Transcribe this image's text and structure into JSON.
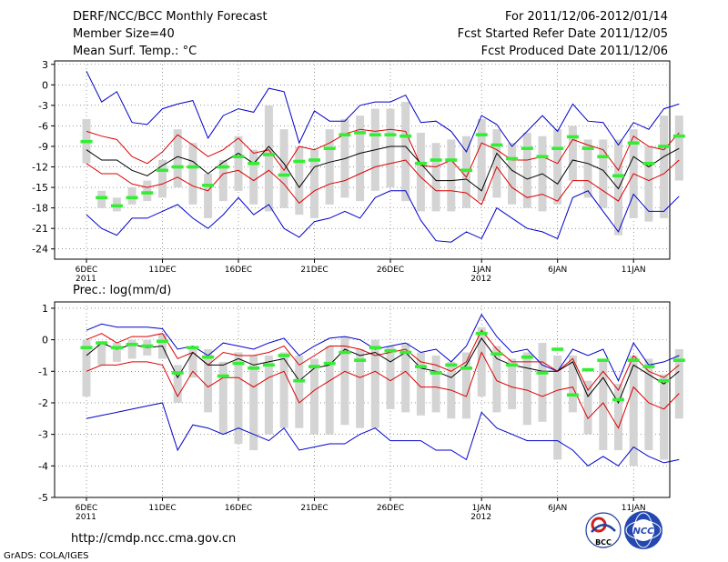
{
  "header": {
    "title": "DERF/NCC/BCC Monthly Forecast",
    "member_size": "Member Size=40",
    "top_variable": "Mean Surf. Temp.: °C",
    "forecast_period": "For 2011/12/06-2012/01/14",
    "started_refer_date": "Fcst Started Refer Date 2011/12/05",
    "produced_date": "Fcst Produced Date 2011/12/06"
  },
  "footer": {
    "url": "http://cmdp.ncc.cma.gov.cn",
    "grads_credit": "GrADS: COLA/IGES",
    "logo_left_text": "BCC",
    "logo_right_text": "NCC"
  },
  "colors": {
    "ensemble_mean": "#000000",
    "spread_band": "#dd0000",
    "envelope": "#0000cc",
    "member_box": "#d4d4d4",
    "median_marker": "#33ee33"
  },
  "chart_data": [
    {
      "type": "line",
      "title": "Mean Surf. Temp.: °C",
      "xlabel": "",
      "ylabel": "°C",
      "ylim": [
        -25.5,
        3.5
      ],
      "yticks": [
        3,
        0,
        -3,
        -6,
        -9,
        -12,
        -15,
        -18,
        -21,
        -24
      ],
      "grid": true,
      "x_tick_labels": [
        {
          "day": 1,
          "label": "6DEC",
          "sub": "2011"
        },
        {
          "day": 6,
          "label": "11DEC",
          "sub": ""
        },
        {
          "day": 11,
          "label": "16DEC",
          "sub": ""
        },
        {
          "day": 16,
          "label": "21DEC",
          "sub": ""
        },
        {
          "day": 21,
          "label": "26DEC",
          "sub": ""
        },
        {
          "day": 27,
          "label": "1JAN",
          "sub": "2012"
        },
        {
          "day": 32,
          "label": "6JAN",
          "sub": ""
        },
        {
          "day": 37,
          "label": "11JAN",
          "sub": ""
        }
      ],
      "days": [
        1,
        2,
        3,
        4,
        5,
        6,
        7,
        8,
        9,
        10,
        11,
        12,
        13,
        14,
        15,
        16,
        17,
        18,
        19,
        20,
        21,
        22,
        23,
        24,
        25,
        26,
        27,
        28,
        29,
        30,
        31,
        32,
        33,
        34,
        35,
        36,
        37,
        38,
        39,
        40
      ],
      "series": [
        {
          "name": "max",
          "role": "envelope-upper",
          "values": [
            2.0,
            -2.5,
            -1.0,
            -5.5,
            -5.8,
            -3.5,
            -2.8,
            -2.3,
            -7.8,
            -4.5,
            -3.5,
            -4.0,
            -0.5,
            -1.0,
            -8.5,
            -3.8,
            -5.3,
            -5.3,
            -3.0,
            -2.5,
            -2.5,
            -1.5,
            -5.5,
            -5.3,
            -6.8,
            -9.8,
            -4.5,
            -5.8,
            -9.0,
            -6.8,
            -4.5,
            -6.8,
            -2.8,
            -5.3,
            -5.5,
            -8.8,
            -5.5,
            -6.5,
            -3.5,
            -2.8
          ]
        },
        {
          "name": "upper",
          "role": "spread-upper",
          "values": [
            -6.8,
            -7.5,
            -8.0,
            -10.5,
            -11.5,
            -9.8,
            -7.3,
            -8.8,
            -10.5,
            -9.5,
            -7.8,
            -10.0,
            -9.5,
            -12.5,
            -9.0,
            -9.5,
            -8.5,
            -7.2,
            -6.5,
            -6.8,
            -6.5,
            -6.8,
            -11.8,
            -12.0,
            -11.0,
            -13.5,
            -8.5,
            -9.5,
            -11.0,
            -11.0,
            -10.5,
            -11.5,
            -8.0,
            -8.8,
            -9.5,
            -12.5,
            -7.5,
            -9.0,
            -9.5,
            -7.0
          ]
        },
        {
          "name": "ensemble-mean",
          "role": "mean",
          "values": [
            -9.5,
            -11.0,
            -11.0,
            -12.5,
            -13.3,
            -11.8,
            -10.5,
            -11.2,
            -13.0,
            -11.3,
            -10.0,
            -11.5,
            -9.0,
            -11.5,
            -15.0,
            -12.0,
            -11.3,
            -10.8,
            -10.0,
            -9.5,
            -9.0,
            -9.0,
            -11.5,
            -14.0,
            -14.0,
            -13.8,
            -15.5,
            -10.0,
            -12.5,
            -13.8,
            -13.0,
            -14.5,
            -11.0,
            -11.5,
            -12.5,
            -15.2,
            -10.5,
            -12.0,
            -10.5,
            -9.3
          ]
        },
        {
          "name": "lower",
          "role": "spread-lower",
          "values": [
            -11.5,
            -13.0,
            -13.0,
            -14.5,
            -15.0,
            -14.5,
            -13.5,
            -14.8,
            -15.5,
            -13.0,
            -12.5,
            -14.0,
            -12.5,
            -14.5,
            -17.3,
            -15.5,
            -14.5,
            -14.0,
            -13.0,
            -12.0,
            -11.5,
            -11.0,
            -13.5,
            -15.5,
            -15.5,
            -15.8,
            -17.5,
            -12.0,
            -15.0,
            -16.5,
            -16.0,
            -17.0,
            -14.0,
            -14.0,
            -15.5,
            -17.0,
            -13.0,
            -14.0,
            -13.0,
            -11.0
          ]
        },
        {
          "name": "min",
          "role": "envelope-lower",
          "values": [
            -19.0,
            -21.0,
            -22.0,
            -19.5,
            -19.5,
            -18.5,
            -17.5,
            -19.5,
            -21.0,
            -19.0,
            -16.5,
            -19.0,
            -17.5,
            -21.0,
            -22.3,
            -20.0,
            -19.5,
            -18.5,
            -19.5,
            -16.5,
            -15.5,
            -15.5,
            -19.8,
            -22.8,
            -23.0,
            -21.5,
            -22.5,
            -18.0,
            -19.5,
            -21.0,
            -21.5,
            -22.5,
            -16.5,
            -15.5,
            -18.5,
            -21.5,
            -16.0,
            -18.5,
            -18.5,
            -16.3
          ]
        }
      ],
      "box_ranges": [
        [
          -5.0,
          -11.5
        ],
        [
          -15.5,
          -18.0
        ],
        [
          -16.5,
          -18.5
        ],
        [
          -15.0,
          -17.5
        ],
        [
          -14.0,
          -17.0
        ],
        [
          -11.0,
          -16.5
        ],
        [
          -6.5,
          -15.0
        ],
        [
          -8.5,
          -17.5
        ],
        [
          -13.0,
          -19.5
        ],
        [
          -11.0,
          -17.0
        ],
        [
          -7.5,
          -15.5
        ],
        [
          -9.5,
          -17.5
        ],
        [
          -3.0,
          -18.5
        ],
        [
          -6.5,
          -18.0
        ],
        [
          -9.0,
          -19.0
        ],
        [
          -9.5,
          -19.5
        ],
        [
          -6.5,
          -17.5
        ],
        [
          -5.0,
          -16.5
        ],
        [
          -4.5,
          -17.0
        ],
        [
          -3.5,
          -15.5
        ],
        [
          -3.5,
          -15.0
        ],
        [
          -2.5,
          -17.0
        ],
        [
          -7.0,
          -18.5
        ],
        [
          -8.5,
          -18.5
        ],
        [
          -8.0,
          -18.5
        ],
        [
          -7.5,
          -18.0
        ],
        [
          -5.0,
          -17.0
        ],
        [
          -6.5,
          -16.5
        ],
        [
          -8.5,
          -17.5
        ],
        [
          -7.0,
          -18.0
        ],
        [
          -7.5,
          -18.5
        ],
        [
          -6.5,
          -17.5
        ],
        [
          -6.0,
          -14.0
        ],
        [
          -8.0,
          -16.5
        ],
        [
          -8.0,
          -18.0
        ],
        [
          -8.0,
          -22.0
        ],
        [
          -6.5,
          -19.5
        ],
        [
          -9.0,
          -20.0
        ],
        [
          -4.5,
          -19.5
        ],
        [
          -4.5,
          -14.0
        ]
      ],
      "medians": [
        -8.3,
        -16.5,
        -17.7,
        -16.5,
        -15.8,
        -12.5,
        -12.0,
        -12.0,
        -14.7,
        -12.0,
        -10.5,
        -11.5,
        -10.2,
        -13.2,
        -11.2,
        -11.0,
        -9.3,
        -7.3,
        -7.0,
        -7.3,
        -7.3,
        -7.5,
        -11.5,
        -11.0,
        -11.0,
        -12.5,
        -7.3,
        -8.8,
        -10.8,
        -9.3,
        -10.5,
        -9.3,
        -7.6,
        -9.3,
        -10.5,
        -13.3,
        -8.5,
        -11.5,
        -9.0,
        -7.5
      ]
    },
    {
      "type": "line",
      "title": "Prec.: log(mm/d)",
      "xlabel": "",
      "ylabel": "log(mm/d)",
      "ylim": [
        -5,
        1.2
      ],
      "yticks": [
        1,
        0,
        -1,
        -2,
        -3,
        -4,
        -5
      ],
      "grid": true,
      "x_tick_labels": [
        {
          "day": 1,
          "label": "6DEC",
          "sub": "2011"
        },
        {
          "day": 6,
          "label": "11DEC",
          "sub": ""
        },
        {
          "day": 11,
          "label": "16DEC",
          "sub": ""
        },
        {
          "day": 16,
          "label": "21DEC",
          "sub": ""
        },
        {
          "day": 21,
          "label": "26DEC",
          "sub": ""
        },
        {
          "day": 27,
          "label": "1JAN",
          "sub": "2012"
        },
        {
          "day": 32,
          "label": "6JAN",
          "sub": ""
        },
        {
          "day": 37,
          "label": "11JAN",
          "sub": ""
        }
      ],
      "days": [
        1,
        2,
        3,
        4,
        5,
        6,
        7,
        8,
        9,
        10,
        11,
        12,
        13,
        14,
        15,
        16,
        17,
        18,
        19,
        20,
        21,
        22,
        23,
        24,
        25,
        26,
        27,
        28,
        29,
        30,
        31,
        32,
        33,
        34,
        35,
        36,
        37,
        38,
        39,
        40
      ],
      "series": [
        {
          "name": "max",
          "role": "envelope-upper",
          "values": [
            0.3,
            0.5,
            0.4,
            0.4,
            0.4,
            0.35,
            -0.3,
            -0.2,
            -0.5,
            -0.1,
            -0.2,
            -0.3,
            -0.1,
            0.05,
            -0.5,
            -0.2,
            0.05,
            0.1,
            0.0,
            -0.3,
            -0.2,
            -0.1,
            -0.4,
            -0.3,
            -0.7,
            -0.2,
            0.8,
            0.1,
            -0.4,
            -0.3,
            -0.8,
            -1.0,
            -0.3,
            -0.5,
            -0.3,
            -1.3,
            -0.1,
            -0.8,
            -0.7,
            -0.5
          ]
        },
        {
          "name": "upper",
          "role": "spread-upper",
          "values": [
            0.0,
            0.2,
            -0.1,
            0.1,
            0.1,
            0.2,
            -0.6,
            -0.4,
            -0.8,
            -0.4,
            -0.5,
            -0.5,
            -0.4,
            -0.2,
            -0.8,
            -0.5,
            -0.2,
            -0.2,
            -0.3,
            -0.5,
            -0.4,
            -0.3,
            -0.7,
            -0.8,
            -1.0,
            -0.7,
            0.3,
            -0.3,
            -0.7,
            -0.7,
            -0.7,
            -1.0,
            -0.6,
            -1.6,
            -1.0,
            -1.6,
            -0.5,
            -1.0,
            -1.2,
            -0.8
          ]
        },
        {
          "name": "ensemble-mean",
          "role": "mean",
          "values": [
            -0.5,
            -0.1,
            -0.3,
            -0.15,
            -0.25,
            -0.2,
            -1.2,
            -0.4,
            -0.8,
            -0.8,
            -0.6,
            -0.8,
            -0.7,
            -0.6,
            -1.3,
            -0.9,
            -0.8,
            -0.3,
            -0.5,
            -0.4,
            -0.7,
            -0.4,
            -0.9,
            -1.0,
            -1.2,
            -0.8,
            0.05,
            -0.6,
            -0.8,
            -0.9,
            -1.0,
            -1.0,
            -0.7,
            -1.8,
            -1.2,
            -2.0,
            -0.8,
            -1.1,
            -1.4,
            -1.0
          ]
        },
        {
          "name": "lower",
          "role": "spread-lower",
          "values": [
            -1.0,
            -0.8,
            -0.8,
            -0.7,
            -0.7,
            -0.8,
            -1.8,
            -1.0,
            -1.5,
            -1.2,
            -1.2,
            -1.5,
            -1.2,
            -1.0,
            -2.0,
            -1.6,
            -1.3,
            -1.0,
            -1.2,
            -1.0,
            -1.3,
            -1.0,
            -1.5,
            -1.5,
            -1.6,
            -1.8,
            -0.4,
            -1.3,
            -1.5,
            -1.6,
            -1.8,
            -1.6,
            -1.5,
            -2.5,
            -2.0,
            -2.8,
            -1.5,
            -2.0,
            -2.2,
            -1.7
          ]
        },
        {
          "name": "min",
          "role": "envelope-lower",
          "values": [
            -2.5,
            -2.4,
            -2.3,
            -2.2,
            -2.1,
            -2.0,
            -3.5,
            -2.7,
            -2.8,
            -3.0,
            -2.8,
            -3.0,
            -3.2,
            -2.8,
            -3.5,
            -3.4,
            -3.3,
            -3.3,
            -3.0,
            -2.8,
            -3.2,
            -3.2,
            -3.2,
            -3.5,
            -3.5,
            -3.8,
            -2.3,
            -2.8,
            -3.0,
            -3.2,
            -3.2,
            -3.2,
            -3.5,
            -4.0,
            -3.7,
            -4.0,
            -3.4,
            -3.7,
            -3.9,
            -3.8
          ]
        }
      ],
      "box_ranges": [
        [
          0.0,
          -1.8
        ],
        [
          -0.1,
          -0.8
        ],
        [
          -0.1,
          -0.7
        ],
        [
          0.0,
          -0.6
        ],
        [
          0.0,
          -0.5
        ],
        [
          0.2,
          -0.6
        ],
        [
          -0.8,
          -2.0
        ],
        [
          -0.2,
          -1.2
        ],
        [
          -0.3,
          -2.3
        ],
        [
          -0.7,
          -3.0
        ],
        [
          -0.4,
          -3.3
        ],
        [
          -0.5,
          -3.5
        ],
        [
          -0.5,
          -3.0
        ],
        [
          -0.4,
          -2.8
        ],
        [
          -0.5,
          -2.8
        ],
        [
          -0.6,
          -3.0
        ],
        [
          -0.2,
          -3.0
        ],
        [
          0.1,
          -2.7
        ],
        [
          -0.3,
          -2.8
        ],
        [
          0.0,
          -2.8
        ],
        [
          -0.2,
          -2.2
        ],
        [
          -0.1,
          -2.3
        ],
        [
          -0.4,
          -2.4
        ],
        [
          -0.5,
          -2.3
        ],
        [
          -0.7,
          -2.5
        ],
        [
          -0.4,
          -2.5
        ],
        [
          0.4,
          -1.8
        ],
        [
          -0.2,
          -2.3
        ],
        [
          -0.6,
          -2.2
        ],
        [
          -0.4,
          -2.7
        ],
        [
          -0.1,
          -2.6
        ],
        [
          -0.5,
          -3.8
        ],
        [
          -0.5,
          -2.3
        ],
        [
          -1.3,
          -3.0
        ],
        [
          -0.7,
          -3.5
        ],
        [
          -1.4,
          -3.5
        ],
        [
          -0.5,
          -4.0
        ],
        [
          -0.6,
          -3.5
        ],
        [
          -1.1,
          -3.8
        ],
        [
          -0.3,
          -2.5
        ]
      ],
      "medians": [
        -0.25,
        -0.1,
        -0.25,
        -0.15,
        -0.2,
        -0.05,
        -1.05,
        -0.25,
        -0.55,
        -1.15,
        -0.75,
        -0.9,
        -0.8,
        -0.5,
        -1.3,
        -0.85,
        -0.75,
        -0.4,
        -0.65,
        -0.25,
        -0.35,
        -0.4,
        -0.85,
        -1.05,
        -0.8,
        -0.9,
        0.2,
        -0.45,
        -0.8,
        -0.55,
        -1.05,
        -0.3,
        -1.75,
        -0.95,
        -0.65,
        -1.9,
        -0.65,
        -0.85,
        -1.3,
        -0.65
      ]
    }
  ]
}
